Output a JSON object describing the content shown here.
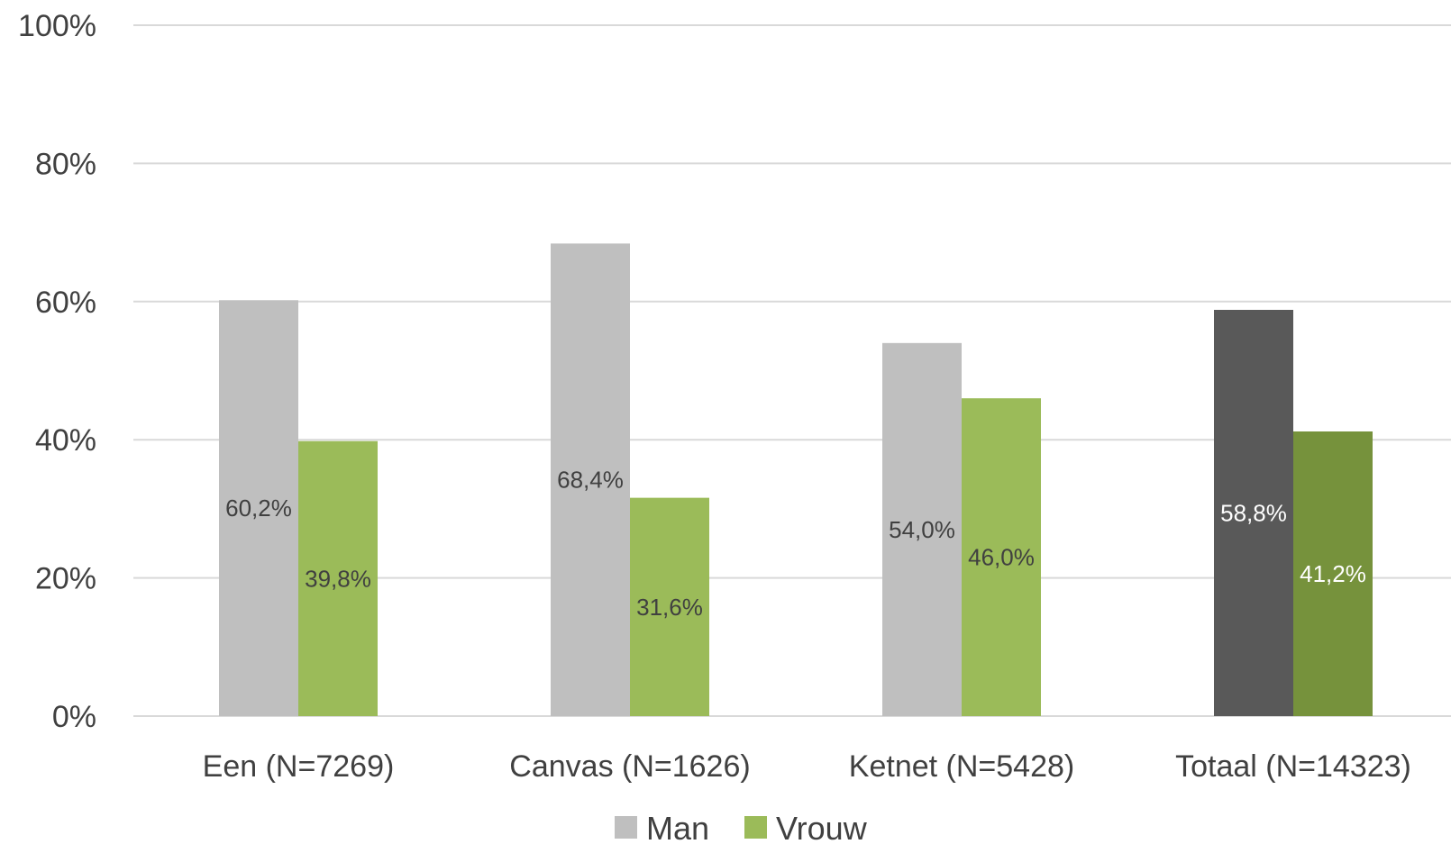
{
  "chart_data": {
    "type": "bar",
    "categories": [
      "Een (N=7269)",
      "Canvas (N=1626)",
      "Ketnet (N=5428)",
      "Totaal (N=14323)"
    ],
    "series": [
      {
        "name": "Man",
        "values": [
          60.2,
          68.4,
          54.0,
          58.8
        ],
        "labels": [
          "60,2%",
          "68,4%",
          "54,0%",
          "58,8%"
        ],
        "color": "#bfbfbf",
        "highlight_color": "#595959"
      },
      {
        "name": "Vrouw",
        "values": [
          39.8,
          31.6,
          46.0,
          41.2
        ],
        "labels": [
          "39,8%",
          "31,6%",
          "46,0%",
          "41,2%"
        ],
        "color": "#9bbb59",
        "highlight_color": "#76923c"
      }
    ],
    "highlight_category": "Totaal (N=14323)",
    "ylim": [
      0,
      100
    ],
    "yticks": [
      0,
      20,
      40,
      60,
      80,
      100
    ],
    "ytick_labels": [
      "0%",
      "20%",
      "40%",
      "60%",
      "80%",
      "100%"
    ],
    "grid": true,
    "grid_color": "#d9d9d9",
    "legend_position": "bottom",
    "label_color_dark": "#404040",
    "label_color_light": "#ffffff"
  }
}
